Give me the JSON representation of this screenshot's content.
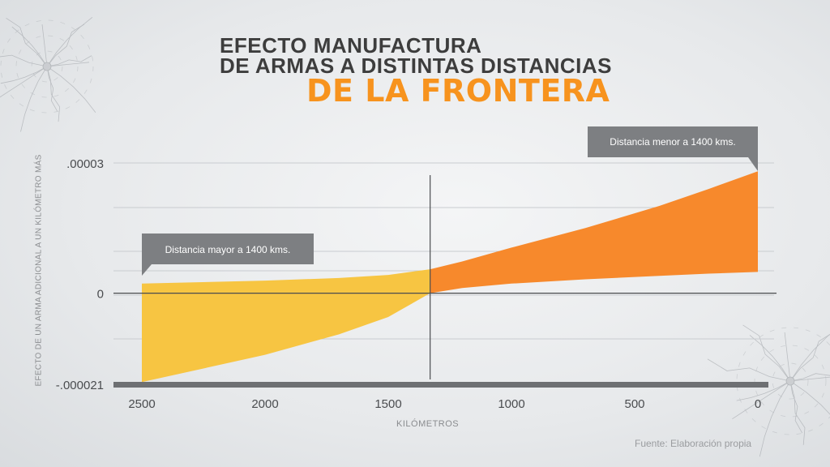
{
  "title": {
    "line1": "EFECTO MANUFACTURA",
    "line2": "DE ARMAS A DISTINTAS DISTANCIAS",
    "line3": "DE LA FRONTERA"
  },
  "source": "Fuente: Elaboración propia",
  "colors": {
    "orange": "#f7931e",
    "yellow": "#f7c542",
    "title": "#3d3d3d",
    "callout": "#7d7f82"
  },
  "chart_data": {
    "type": "area",
    "xlabel": "KILÓMETROS",
    "ylabel": "EFECTO DE UN ARMA ADICIONAL A UN KILÓMETRO MÁS",
    "x_reversed": true,
    "xlim": [
      2500,
      0
    ],
    "ylim": [
      -2.1e-05,
      3e-05
    ],
    "x_ticks": [
      {
        "value": 2500,
        "label": "2500"
      },
      {
        "value": 2000,
        "label": "2000"
      },
      {
        "value": 1500,
        "label": "1500"
      },
      {
        "value": 1000,
        "label": "1000"
      },
      {
        "value": 500,
        "label": "500"
      },
      {
        "value": 0,
        "label": "0"
      }
    ],
    "y_ticks": [
      {
        "value": 3e-05,
        "label": ".00003"
      },
      {
        "value": 0,
        "label": "0"
      },
      {
        "value": -2.1e-05,
        "label": "-.000021"
      }
    ],
    "threshold_km": 1330,
    "series": [
      {
        "name": "Distancia mayor a 1400 kms.",
        "color": "#f7c542",
        "x": [
          2500,
          2000,
          1700,
          1500,
          1330
        ],
        "upper": [
          2.2e-06,
          2.9e-06,
          3.5e-06,
          4.2e-06,
          5.5e-06
        ],
        "lower": [
          -2.05e-05,
          -1.42e-05,
          -9.5e-06,
          -5.5e-06,
          0.0
        ]
      },
      {
        "name": "Distancia menor a 1400 kms.",
        "color": "#f7892c",
        "x": [
          1330,
          1200,
          1000,
          700,
          400,
          200,
          0
        ],
        "upper": [
          5.5e-06,
          7.3e-06,
          1.05e-05,
          1.5e-05,
          2.01e-05,
          2.4e-05,
          2.81e-05
        ],
        "lower": [
          0.0,
          1.2e-06,
          2.2e-06,
          3.2e-06,
          4e-06,
          4.5e-06,
          4.9e-06
        ]
      }
    ],
    "annotations": [
      {
        "text": "Distancia mayor a 1400 kms.",
        "series": 0
      },
      {
        "text": "Distancia menor a 1400 kms.",
        "series": 1
      }
    ]
  }
}
